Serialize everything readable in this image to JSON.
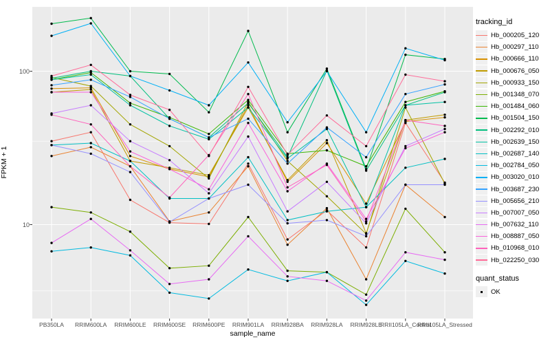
{
  "axes": {
    "x_title": "sample_name",
    "y_title": "FPKM + 1",
    "y_tick_labels": [
      "100",
      "10"
    ]
  },
  "legend": {
    "tracking": {
      "title": "tracking_id"
    },
    "quant": {
      "title": "quant_status",
      "item_label": "OK",
      "point_color": "#000000"
    },
    "key_background": "#f0f0f0"
  },
  "style": {
    "panel_background": "#ebebeb",
    "grid_color": "#ffffff",
    "tick_color": "#333333",
    "axis_text_color": "#4d4d4d",
    "point_color": "#000000"
  },
  "chart_data": {
    "type": "line",
    "x_axis_label": "sample_name",
    "y_axis_label": "FPKM + 1",
    "y_scale": "log10",
    "y_major_ticks": [
      100,
      10
    ],
    "y_minor_gridlines": [
      35,
      3.7
    ],
    "ylim": [
      2.6,
      263
    ],
    "grid": true,
    "legend_position": "right",
    "categories": [
      "PB350LA",
      "RRIM600LA",
      "RRIM600LE",
      "RRIM600SE",
      "RRIM600PE",
      "RRIM901LA",
      "RRIM928BA",
      "RRIM928LA",
      "RRIM928LE",
      "RRII105LA_Control",
      "RRII105LA_Stressed"
    ],
    "series": [
      {
        "name": "Hb_000205_120",
        "color": "#F8766D",
        "values": [
          35,
          40,
          14.5,
          10.3,
          10.1,
          25,
          8.0,
          12.4,
          7.1,
          46,
          18.8
        ]
      },
      {
        "name": "Hb_000297_110",
        "color": "#EA8331",
        "values": [
          28,
          32,
          24,
          10.5,
          12,
          24,
          7.4,
          12.8,
          4.4,
          18.2,
          11.2
        ]
      },
      {
        "name": "Hb_000666_110",
        "color": "#D89000",
        "values": [
          77,
          78,
          28,
          23,
          20.5,
          60,
          19,
          34,
          13.7,
          47,
          50
        ]
      },
      {
        "name": "Hb_000676_050",
        "color": "#C09B00",
        "values": [
          73,
          76,
          26,
          23.5,
          21,
          58,
          19.5,
          35.5,
          8.8,
          48,
          52
        ]
      },
      {
        "name": "Hb_000933_150",
        "color": "#A3A500",
        "values": [
          91,
          80,
          45,
          32.5,
          20,
          63,
          26,
          15.3,
          8.7,
          58,
          18.5
        ]
      },
      {
        "name": "Hb_001348_070",
        "color": "#7CAE00",
        "values": [
          13,
          12,
          9,
          5.2,
          5.4,
          11.2,
          5.0,
          4.9,
          3.5,
          12.7,
          6.6
        ]
      },
      {
        "name": "Hb_001484_060",
        "color": "#39B600",
        "values": [
          88,
          98,
          62,
          50,
          39,
          65,
          29,
          30.5,
          24,
          63,
          74
        ]
      },
      {
        "name": "Hb_001504_150",
        "color": "#00BB4E",
        "values": [
          204,
          222,
          100,
          96,
          54,
          183,
          40,
          104,
          23,
          128,
          120
        ]
      },
      {
        "name": "Hb_002292_010",
        "color": "#00BF7D",
        "values": [
          90,
          100,
          93,
          49,
          37,
          62,
          27.5,
          101,
          22.5,
          60,
          73
        ]
      },
      {
        "name": "Hb_002639_150",
        "color": "#00C1A3",
        "values": [
          88,
          95,
          60,
          44,
          36,
          58,
          27,
          42,
          13,
          60,
          63
        ]
      },
      {
        "name": "Hb_002687_140",
        "color": "#00BFC4",
        "values": [
          33,
          34,
          26,
          14.8,
          14.8,
          27.5,
          10.7,
          12.2,
          13,
          23.5,
          26.8
        ]
      },
      {
        "name": "Hb_002784_050",
        "color": "#00BAE0",
        "values": [
          6.7,
          7.1,
          6.3,
          3.6,
          3.3,
          5.1,
          4.3,
          4.9,
          3.0,
          5.8,
          4.8
        ]
      },
      {
        "name": "Hb_003020_010",
        "color": "#00B0F6",
        "values": [
          170,
          205,
          93,
          75,
          60,
          114,
          46.5,
          100,
          40,
          141,
          118
        ]
      },
      {
        "name": "Hb_003687_230",
        "color": "#35A2FF",
        "values": [
          81,
          88,
          68,
          49,
          37,
          49,
          25,
          43,
          27.5,
          71,
          82
        ]
      },
      {
        "name": "Hb_005656_210",
        "color": "#9590FF",
        "values": [
          33,
          29,
          22,
          10.4,
          14.8,
          18.2,
          10.2,
          10.7,
          8.4,
          18.2,
          18.2
        ]
      },
      {
        "name": "Hb_007007_050",
        "color": "#C77CFF",
        "values": [
          53,
          60,
          35,
          26.3,
          16,
          37.5,
          12.2,
          19,
          10.2,
          32.5,
          42
        ]
      },
      {
        "name": "Hb_007632_110",
        "color": "#E76BF3",
        "values": [
          7.6,
          10.9,
          6.8,
          4.1,
          4.4,
          8.4,
          4.6,
          4.3,
          3.2,
          6.6,
          5.9
        ]
      },
      {
        "name": "Hb_008887_050",
        "color": "#FA62DB",
        "values": [
          73,
          73,
          30,
          23,
          17,
          46,
          16.5,
          25,
          10.9,
          31.5,
          40
        ]
      },
      {
        "name": "Hb_010968_010",
        "color": "#FF62BC",
        "values": [
          52,
          45,
          24,
          15,
          28.4,
          71,
          17.5,
          24.5,
          10.5,
          48,
          44
        ]
      },
      {
        "name": "Hb_022250_030",
        "color": "#FF6A98",
        "values": [
          93,
          110,
          70,
          56,
          28,
          79,
          28.5,
          51.5,
          32.5,
          95,
          86
        ]
      }
    ]
  }
}
